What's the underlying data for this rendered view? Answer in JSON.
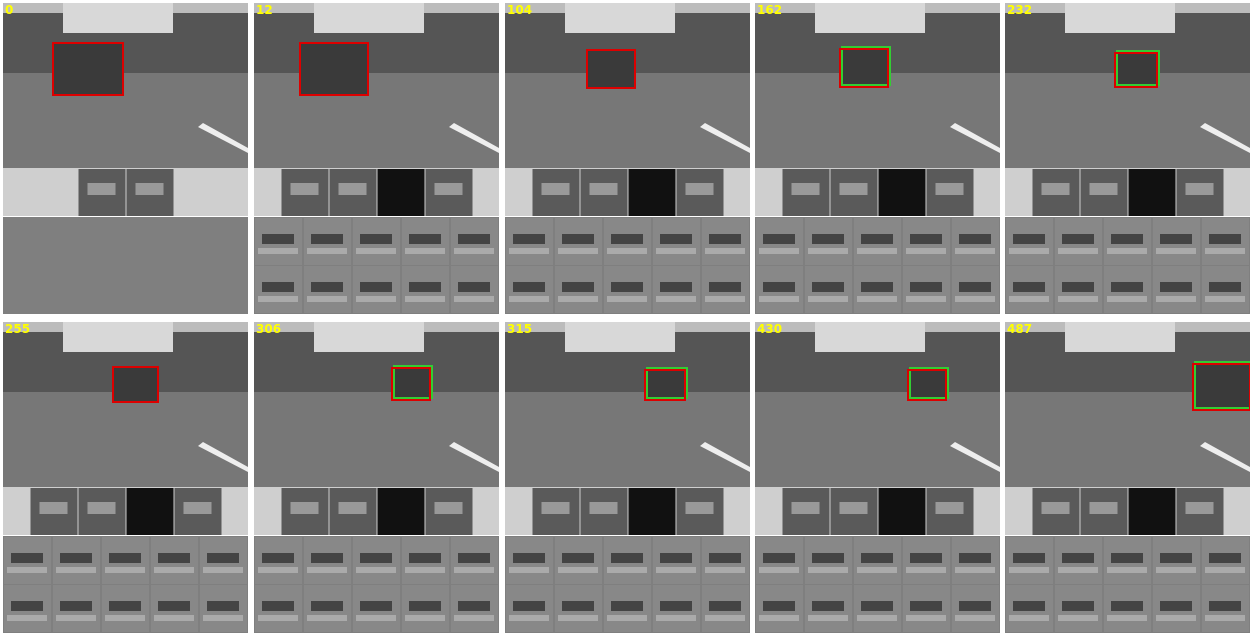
{
  "frames": [
    {
      "label": "0"
    },
    {
      "label": "12"
    },
    {
      "label": "104"
    },
    {
      "label": "162"
    },
    {
      "label": "232"
    },
    {
      "label": "255"
    },
    {
      "label": "306"
    },
    {
      "label": "315"
    },
    {
      "label": "430"
    },
    {
      "label": "487"
    }
  ]
}
